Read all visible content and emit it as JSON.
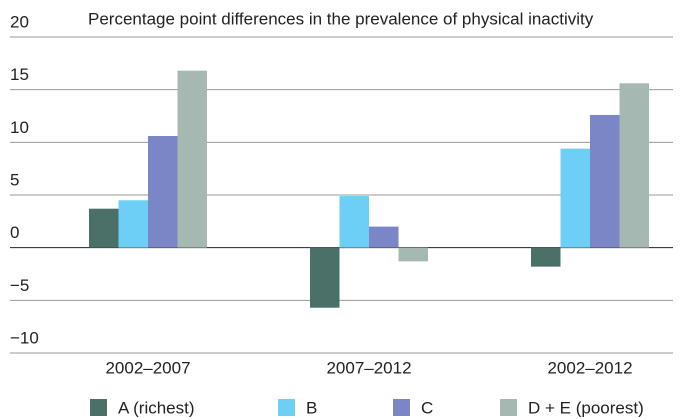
{
  "chart_data": {
    "type": "bar",
    "title": "Percentage point differences in the prevalence of physical inactivity",
    "categories": [
      "2002–2007",
      "2007–2012",
      "2002–2012"
    ],
    "series": [
      {
        "name": "A (richest)",
        "color": "#4a7068",
        "values": [
          3.7,
          -5.7,
          -1.8
        ]
      },
      {
        "name": "B",
        "color": "#6dcff6",
        "values": [
          4.5,
          4.9,
          9.4
        ]
      },
      {
        "name": "C",
        "color": "#7a86c6",
        "values": [
          10.6,
          2.0,
          12.6
        ]
      },
      {
        "name": "D + E (poorest)",
        "color": "#a5b8b1",
        "values": [
          16.8,
          -1.3,
          15.6
        ]
      }
    ],
    "ylim": [
      -10,
      20
    ],
    "yticks": [
      {
        "value": -10,
        "label": "−10"
      },
      {
        "value": -5,
        "label": "−5"
      },
      0,
      5,
      10,
      15,
      20
    ],
    "grid": true
  }
}
